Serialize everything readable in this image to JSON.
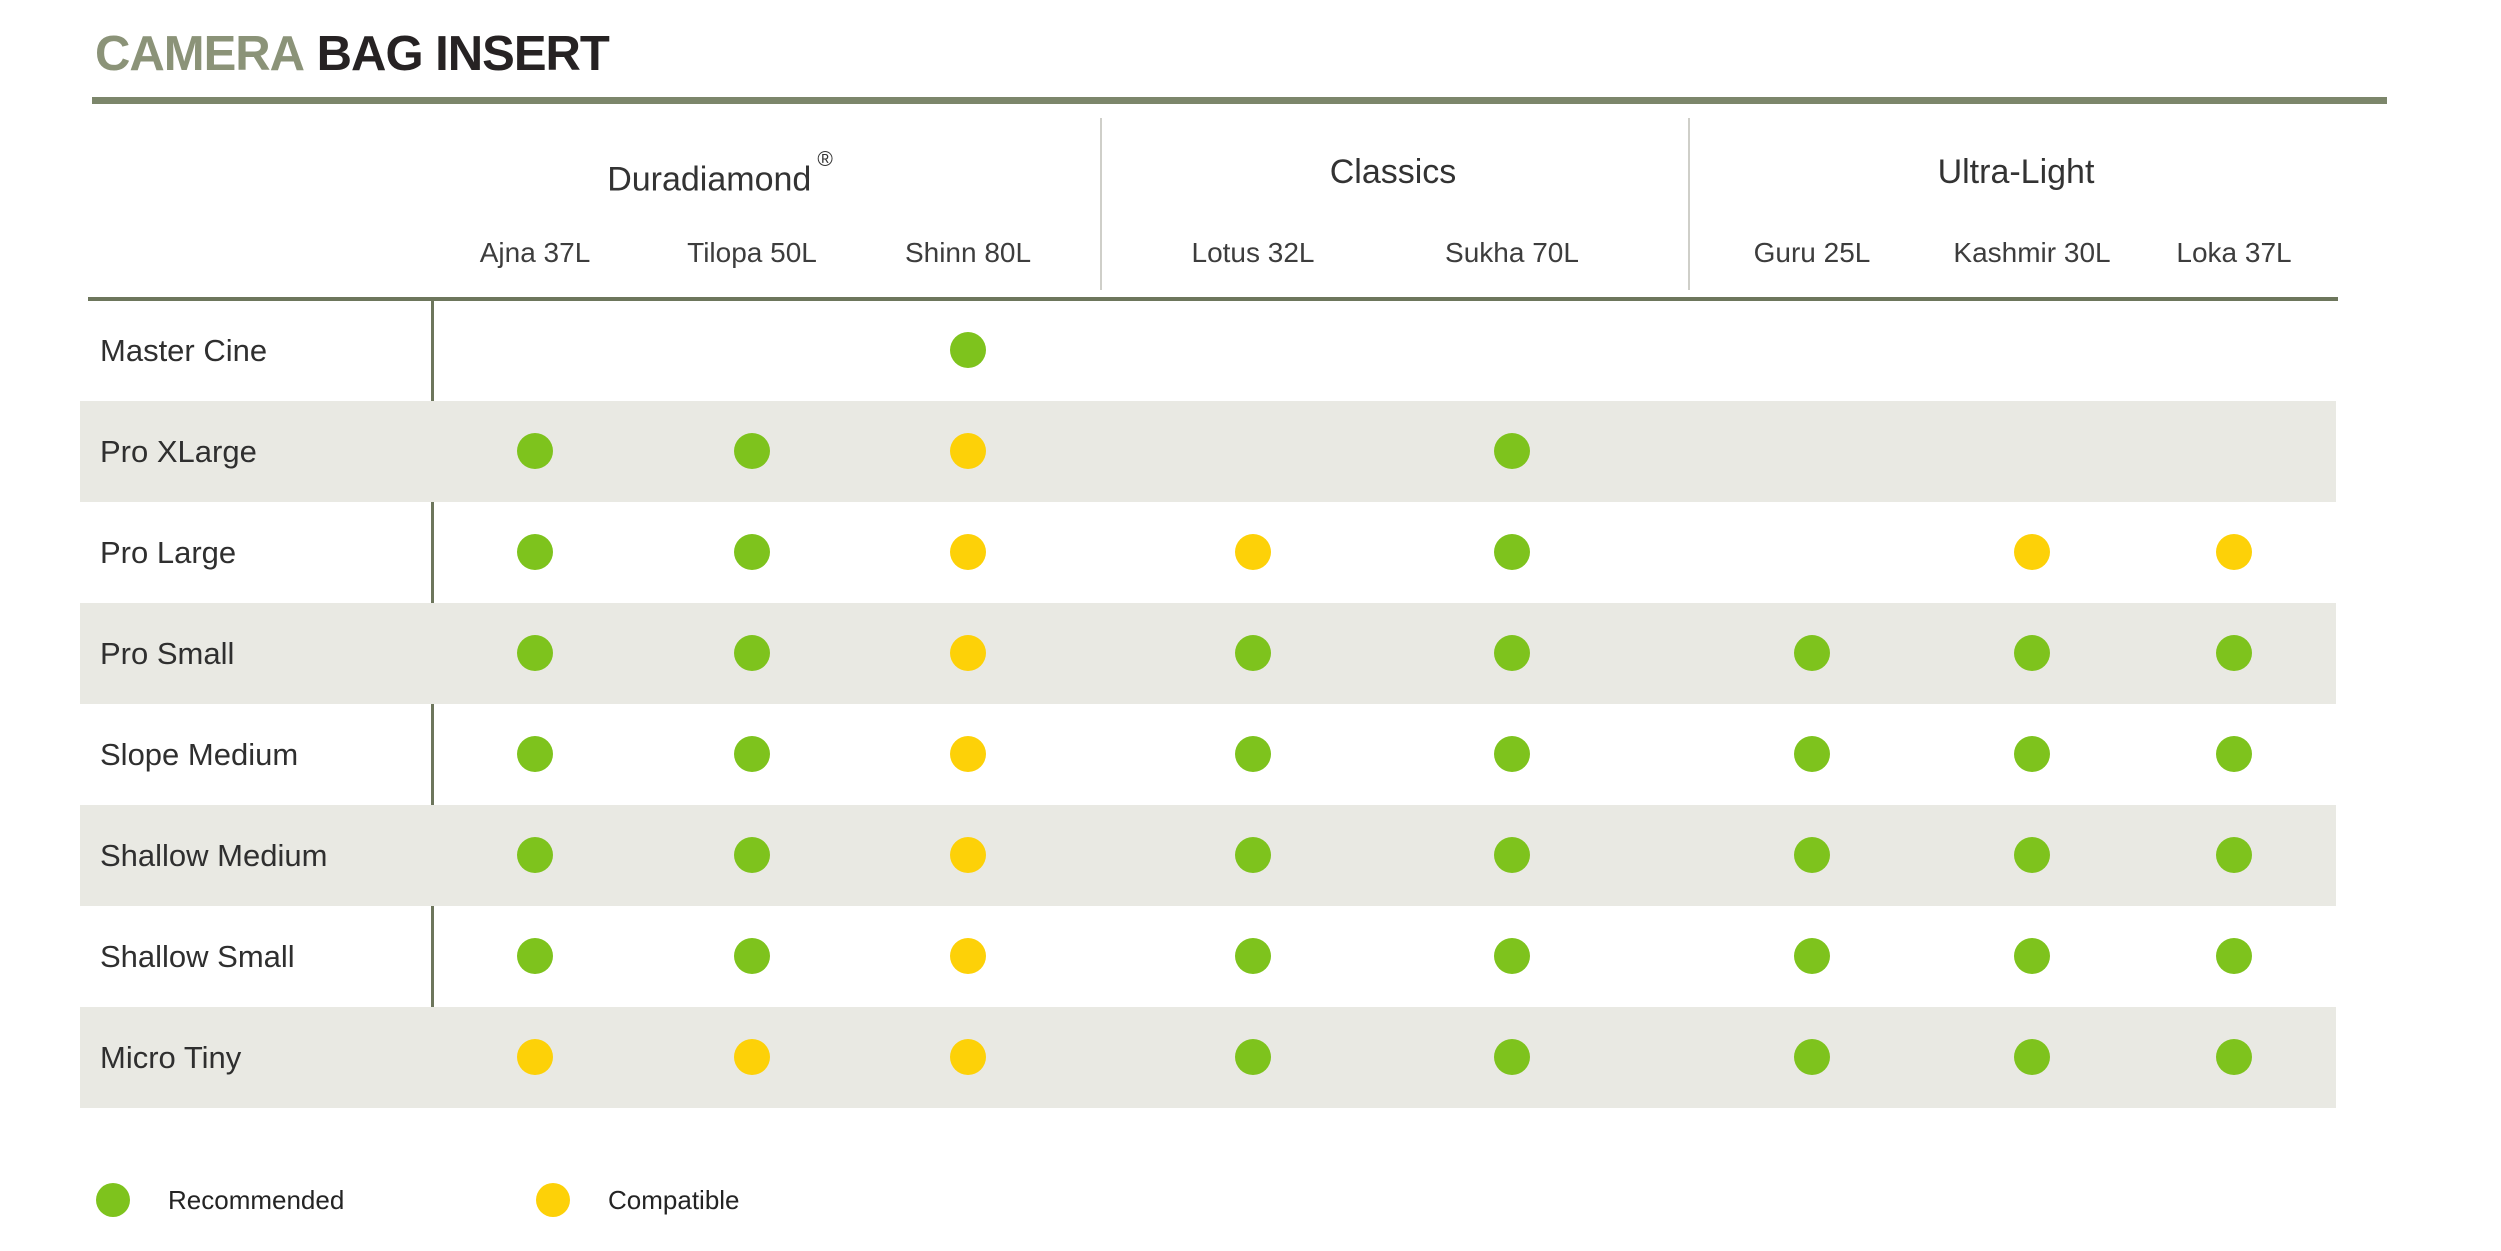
{
  "title": {
    "accent": "CAMERA",
    "rest": "BAG INSERT"
  },
  "colors": {
    "accent_olive": "#8b9378",
    "rule_olive": "#7c866b",
    "header_line": "#6d765c",
    "stripe": "#e9e9e3",
    "recommended": "#7ec31d",
    "compatible": "#fdd108"
  },
  "chart_data": {
    "type": "table",
    "title": "CAMERA BAG INSERT",
    "column_groups": [
      {
        "label": "Duradiamond",
        "suffix": "®",
        "columns": [
          "Ajna 37L",
          "Tilopa 50L",
          "Shinn 80L"
        ]
      },
      {
        "label": "Classics",
        "suffix": "",
        "columns": [
          "Lotus 32L",
          "Sukha 70L"
        ]
      },
      {
        "label": "Ultra-Light",
        "suffix": "",
        "columns": [
          "Guru 25L",
          "Kashmir 30L",
          "Loka 37L"
        ]
      }
    ],
    "rows": [
      {
        "label": "Master Cine",
        "values": [
          null,
          null,
          "recommended",
          null,
          null,
          null,
          null,
          null
        ]
      },
      {
        "label": "Pro XLarge",
        "values": [
          "recommended",
          "recommended",
          "compatible",
          null,
          "recommended",
          null,
          null,
          null
        ]
      },
      {
        "label": "Pro Large",
        "values": [
          "recommended",
          "recommended",
          "compatible",
          "compatible",
          "recommended",
          null,
          "compatible",
          "compatible"
        ]
      },
      {
        "label": "Pro Small",
        "values": [
          "recommended",
          "recommended",
          "compatible",
          "recommended",
          "recommended",
          "recommended",
          "recommended",
          "recommended"
        ]
      },
      {
        "label": "Slope Medium",
        "values": [
          "recommended",
          "recommended",
          "compatible",
          "recommended",
          "recommended",
          "recommended",
          "recommended",
          "recommended"
        ]
      },
      {
        "label": "Shallow Medium",
        "values": [
          "recommended",
          "recommended",
          "compatible",
          "recommended",
          "recommended",
          "recommended",
          "recommended",
          "recommended"
        ]
      },
      {
        "label": "Shallow Small",
        "values": [
          "recommended",
          "recommended",
          "compatible",
          "recommended",
          "recommended",
          "recommended",
          "recommended",
          "recommended"
        ]
      },
      {
        "label": "Micro Tiny",
        "values": [
          "compatible",
          "compatible",
          "compatible",
          "recommended",
          "recommended",
          "recommended",
          "recommended",
          "recommended"
        ]
      }
    ],
    "legend": [
      {
        "key": "recommended",
        "label": "Recommended",
        "color": "#7ec31d"
      },
      {
        "key": "compatible",
        "label": "Compatible",
        "color": "#fdd108"
      }
    ]
  }
}
